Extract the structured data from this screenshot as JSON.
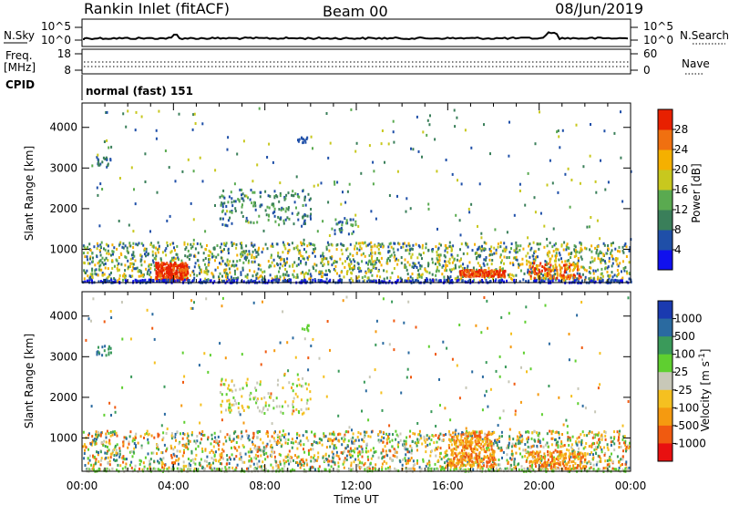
{
  "header": {
    "title": "Rankin Inlet (fitACF)",
    "beam": "Beam 00",
    "date": "08/Jun/2019"
  },
  "top_panel": {
    "left_label": "N.Sky",
    "left_ticks": [
      "10^5",
      "10^0"
    ],
    "right_label": "N.Search",
    "right_ticks": [
      "10^5",
      "10^0"
    ]
  },
  "freq_panel": {
    "left_label_line1": "Freq.",
    "left_label_line2": "[MHz]",
    "left_ticks": [
      "18",
      "8"
    ],
    "right_label": "Nave",
    "right_ticks": [
      "60",
      "0"
    ]
  },
  "cpid": {
    "label": "CPID",
    "text": "normal (fast) 151"
  },
  "colors": {
    "power": [
      "#1010ee",
      "#1f4fa8",
      "#3a7f5a",
      "#5aaa50",
      "#c8c81e",
      "#f5b000",
      "#f07010",
      "#e82000"
    ],
    "velocity": [
      "#e81010",
      "#f05a10",
      "#f59a10",
      "#f5c020",
      "#c8c8b8",
      "#5fcf30",
      "#3a9a5a",
      "#2a6aa0",
      "#1a3ab0"
    ]
  },
  "chart_data": [
    {
      "type": "heatmap",
      "name": "power-panel",
      "ylabel": "Slant Range [km]",
      "xlabel": "",
      "y_ticks": [
        "1000",
        "2000",
        "3000",
        "4000"
      ],
      "ylim": [
        180,
        4600
      ],
      "x_ticks": [],
      "colorbar_label": "Power [dB]",
      "colorbar_ticks": [
        "4",
        "8",
        "12",
        "16",
        "20",
        "24",
        "28"
      ],
      "colorbar_range": [
        0,
        32
      ]
    },
    {
      "type": "heatmap",
      "name": "velocity-panel",
      "ylabel": "Slant Range [km]",
      "xlabel": "Time UT",
      "y_ticks": [
        "1000",
        "2000",
        "3000",
        "4000"
      ],
      "ylim": [
        180,
        4600
      ],
      "x_ticks": [
        "00:00",
        "04:00",
        "08:00",
        "12:00",
        "16:00",
        "20:00",
        "00:00"
      ],
      "colorbar_label": "Velocity [m s-1]",
      "colorbar_ticks": [
        "1000",
        "500",
        "100",
        "25",
        "-25",
        "-100",
        "-500",
        "-1000"
      ]
    }
  ]
}
